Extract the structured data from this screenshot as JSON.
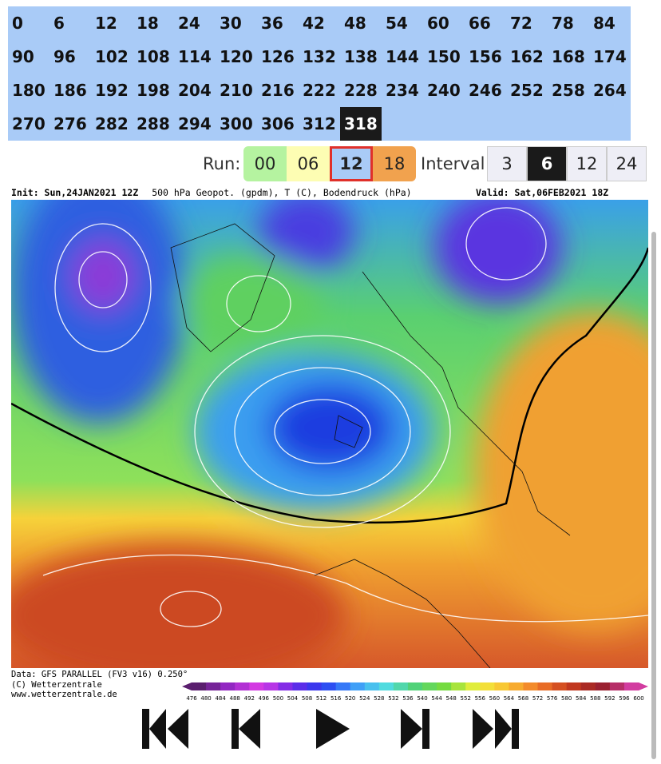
{
  "timesteps": {
    "values": [
      0,
      6,
      12,
      18,
      24,
      30,
      36,
      42,
      48,
      54,
      60,
      66,
      72,
      78,
      84,
      90,
      96,
      102,
      108,
      114,
      120,
      126,
      132,
      138,
      144,
      150,
      156,
      162,
      168,
      174,
      180,
      186,
      192,
      198,
      204,
      210,
      216,
      222,
      228,
      234,
      240,
      246,
      252,
      258,
      264,
      270,
      276,
      282,
      288,
      294,
      300,
      306,
      312,
      318
    ],
    "selected": 318
  },
  "run": {
    "label": "Run:",
    "options": [
      "00",
      "06",
      "12",
      "18"
    ],
    "selected": "12"
  },
  "interval": {
    "label": "Interval",
    "options": [
      "3",
      "6",
      "12",
      "24"
    ],
    "selected": "6"
  },
  "map": {
    "init": "Init: Sun,24JAN2021 12Z",
    "title": "500 hPa Geopot. (gpdm), T (C), Bodendruck (hPa)",
    "valid": "Valid: Sat,06FEB2021 18Z"
  },
  "footer": {
    "lines": [
      "Data: GFS PARALLEL (FV3 v16) 0.250°",
      "(C) Wetterzentrale",
      "www.wetterzentrale.de"
    ]
  },
  "colorbar": {
    "labels": [
      476,
      480,
      484,
      488,
      492,
      496,
      500,
      504,
      508,
      512,
      516,
      520,
      524,
      528,
      532,
      536,
      540,
      544,
      548,
      552,
      556,
      560,
      564,
      568,
      572,
      576,
      580,
      584,
      588,
      592,
      596,
      600
    ]
  }
}
